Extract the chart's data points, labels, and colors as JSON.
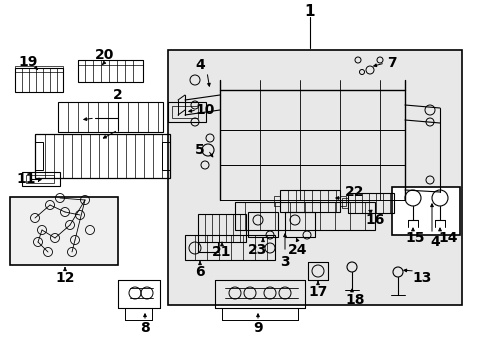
{
  "bg_color": "#ffffff",
  "fig_w": 4.89,
  "fig_h": 3.6,
  "dpi": 100
}
